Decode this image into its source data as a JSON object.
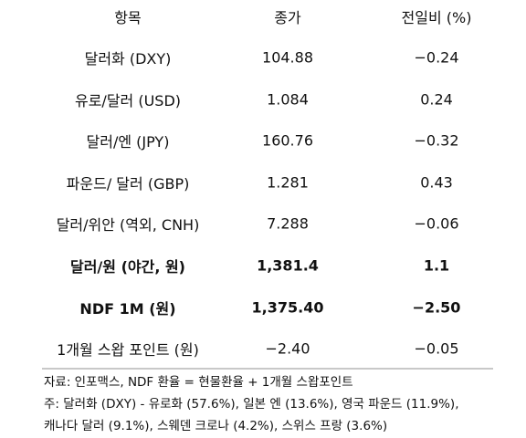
{
  "table": {
    "header": [
      "항목",
      "종가",
      "전일비 (%)"
    ],
    "rows": [
      [
        "달러화 (DXY)",
        "104.88",
        "−0.24"
      ],
      [
        "유로/달러 (USD)",
        "1.084",
        "0.24"
      ],
      [
        "달러/엔 (JPY)",
        "160.76",
        "−0.32"
      ],
      [
        "파운드/ 달러 (GBP)",
        "1.281",
        "0.43"
      ],
      [
        "달러/위안 (역외, CNH)",
        "7.288",
        "−0.06"
      ],
      [
        "달러/원 (야간, 원)",
        "1,381.4",
        "1.1"
      ],
      [
        "NDF 1M (원)",
        "1,375.40",
        "−2.50"
      ],
      [
        "1개월 스왑 포인트 (원)",
        "−2.40",
        "−0.05"
      ]
    ]
  },
  "notes": [
    "자료: 인포맥스, NDF 환율 = 현물환율 + 1개월 스왑포인트",
    "주: 달러화 (DXY) - 유로화 (57.6%), 일본 엔 (13.6%), 영국 파운드 (11.9%),",
    "캐나다 달러 (9.1%), 스웨덴 크로나 (4.2%), 스위스 프랑 (3.6%)"
  ]
}
